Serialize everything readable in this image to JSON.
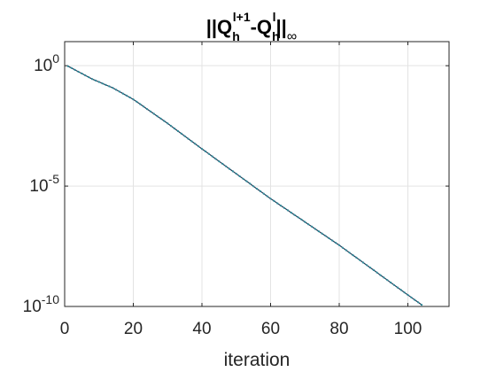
{
  "chart_data": {
    "type": "scatter",
    "title": "||Q_h^{l+1}-Q_h^l||_∞",
    "title_parts": {
      "open": "||Q",
      "sub1": "h",
      "sup1": "l+1",
      "mid": "-Q",
      "sub2": "h",
      "sup2": "l",
      "close": "||",
      "norm_sub": "∞"
    },
    "xlabel": "iteration",
    "ylabel": "",
    "xlim": [
      0,
      112
    ],
    "ylim": [
      1e-10,
      10
    ],
    "yscale": "log",
    "grid": true,
    "x_ticks": [
      0,
      20,
      40,
      60,
      80,
      100
    ],
    "x_tick_labels": [
      "0",
      "20",
      "40",
      "60",
      "80",
      "100"
    ],
    "y_ticks": [
      {
        "value": 1,
        "base": "10",
        "exp": "0"
      },
      {
        "value": 1e-05,
        "base": "10",
        "exp": "-5"
      },
      {
        "value": 1e-10,
        "base": "10",
        "exp": "-10"
      }
    ],
    "series": [
      {
        "marker_color": "#2e8b9a",
        "line_color": "#1f3b57",
        "x_range": [
          1,
          112
        ],
        "anchors": [
          {
            "x": 1,
            "y": 0.95
          },
          {
            "x": 8,
            "y": 0.28
          },
          {
            "x": 14,
            "y": 0.12
          },
          {
            "x": 20,
            "y": 0.04
          },
          {
            "x": 30,
            "y": 0.004
          },
          {
            "x": 40,
            "y": 0.00035
          },
          {
            "x": 60,
            "y": 3e-06
          },
          {
            "x": 80,
            "y": 3.5e-08
          },
          {
            "x": 100,
            "y": 3e-10
          },
          {
            "x": 112,
            "y": 1.8e-11
          }
        ]
      }
    ]
  }
}
